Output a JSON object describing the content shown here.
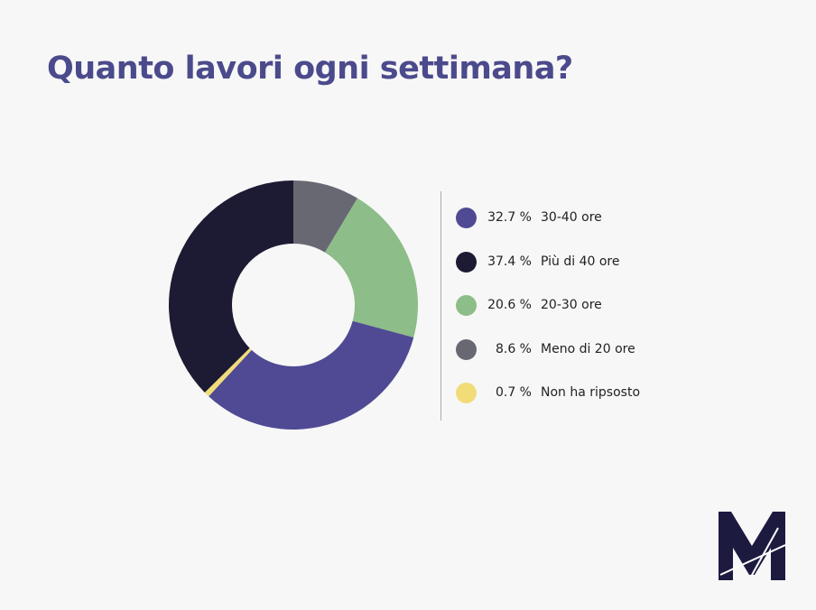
{
  "title": "Quanto lavori ogni settimana?",
  "chart_data": {
    "type": "donut",
    "title": "Quanto lavori ogni settimana?",
    "slices": [
      {
        "label": "Meno di 20 ore",
        "value": 8.6,
        "pct_label": "8.6 %",
        "color": "#686873"
      },
      {
        "label": "20-30 ore",
        "value": 20.6,
        "pct_label": "20.6 %",
        "color": "#8dbd88"
      },
      {
        "label": "30-40 ore",
        "value": 32.7,
        "pct_label": "32.7 %",
        "color": "#4f4a93"
      },
      {
        "label": "Non ha ripsosto",
        "value": 0.7,
        "pct_label": "0.7 %",
        "color": "#f1dc78"
      },
      {
        "label": "Più di 40 ore",
        "value": 37.4,
        "pct_label": "37.4 %",
        "color": "#1d1a33"
      }
    ],
    "legend_order": [
      2,
      4,
      1,
      0,
      3
    ],
    "legend_placement": "right"
  },
  "logo": {
    "text": "M",
    "color": "#1d1a40"
  }
}
